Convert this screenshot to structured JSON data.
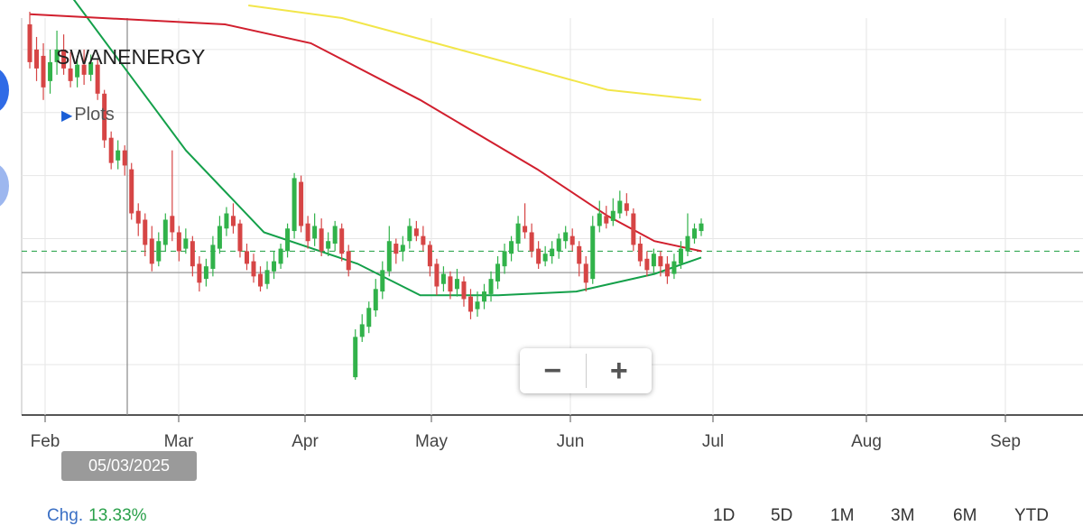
{
  "chart_data": {
    "type": "candlestick",
    "ticker": "SWANENERGY",
    "overlay_label": "Plots",
    "x_ticks": [
      "Feb",
      "Mar",
      "Apr",
      "May",
      "Jun",
      "Jul",
      "Aug",
      "Sep"
    ],
    "crosshair_date": "05/03/2025",
    "ylim": [
      310,
      625
    ],
    "gridlines_y": [
      600,
      550,
      500,
      450,
      400,
      350
    ],
    "current_price_line": 423,
    "dashed_line": 440,
    "candles": [
      [
        620,
        590,
        630,
        585
      ],
      [
        600,
        585,
        610,
        575
      ],
      [
        595,
        570,
        605,
        560
      ],
      [
        575,
        590,
        600,
        565
      ],
      [
        590,
        600,
        615,
        580
      ],
      [
        600,
        585,
        612,
        580
      ],
      [
        585,
        575,
        598,
        570
      ],
      [
        578,
        588,
        595,
        570
      ],
      [
        588,
        580,
        600,
        572
      ],
      [
        580,
        590,
        596,
        575
      ],
      [
        588,
        565,
        592,
        560
      ],
      [
        565,
        528,
        568,
        522
      ],
      [
        530,
        510,
        535,
        505
      ],
      [
        512,
        520,
        528,
        505
      ],
      [
        520,
        508,
        524,
        500
      ],
      [
        505,
        470,
        510,
        465
      ],
      [
        472,
        462,
        478,
        452
      ],
      [
        465,
        445,
        470,
        436
      ],
      [
        450,
        430,
        460,
        424
      ],
      [
        432,
        448,
        455,
        428
      ],
      [
        445,
        465,
        470,
        440
      ],
      [
        468,
        455,
        520,
        448
      ],
      [
        455,
        440,
        460,
        432
      ],
      [
        442,
        450,
        458,
        438
      ],
      [
        448,
        428,
        452,
        420
      ],
      [
        430,
        415,
        436,
        408
      ],
      [
        418,
        428,
        434,
        412
      ],
      [
        426,
        445,
        452,
        420
      ],
      [
        442,
        460,
        468,
        438
      ],
      [
        458,
        470,
        475,
        452
      ],
      [
        468,
        460,
        478,
        454
      ],
      [
        462,
        440,
        465,
        435
      ],
      [
        440,
        430,
        446,
        425
      ],
      [
        432,
        420,
        438,
        415
      ],
      [
        422,
        412,
        428,
        408
      ],
      [
        414,
        425,
        432,
        410
      ],
      [
        424,
        432,
        440,
        418
      ],
      [
        430,
        442,
        446,
        426
      ],
      [
        440,
        458,
        462,
        435
      ],
      [
        456,
        498,
        502,
        450
      ],
      [
        495,
        460,
        500,
        455
      ],
      [
        462,
        448,
        468,
        442
      ],
      [
        450,
        460,
        470,
        444
      ],
      [
        458,
        440,
        466,
        436
      ],
      [
        442,
        448,
        455,
        436
      ],
      [
        446,
        460,
        464,
        440
      ],
      [
        458,
        438,
        462,
        432
      ],
      [
        440,
        425,
        445,
        420
      ],
      [
        340,
        372,
        378,
        338
      ],
      [
        372,
        382,
        390,
        368
      ],
      [
        380,
        395,
        400,
        375
      ],
      [
        393,
        410,
        418,
        388
      ],
      [
        408,
        425,
        432,
        402
      ],
      [
        424,
        448,
        460,
        420
      ],
      [
        446,
        438,
        450,
        430
      ],
      [
        440,
        445,
        452,
        432
      ],
      [
        448,
        460,
        466,
        442
      ],
      [
        458,
        452,
        464,
        448
      ],
      [
        452,
        445,
        460,
        440
      ],
      [
        445,
        428,
        448,
        420
      ],
      [
        430,
        412,
        434,
        405
      ],
      [
        414,
        422,
        428,
        408
      ],
      [
        420,
        408,
        424,
        402
      ],
      [
        410,
        418,
        426,
        404
      ],
      [
        416,
        402,
        420,
        396
      ],
      [
        404,
        392,
        410,
        386
      ],
      [
        394,
        400,
        408,
        388
      ],
      [
        400,
        408,
        414,
        394
      ],
      [
        406,
        418,
        424,
        400
      ],
      [
        416,
        430,
        436,
        410
      ],
      [
        428,
        440,
        446,
        422
      ],
      [
        438,
        448,
        452,
        432
      ],
      [
        446,
        462,
        468,
        440
      ],
      [
        460,
        455,
        478,
        450
      ],
      [
        455,
        440,
        462,
        435
      ],
      [
        442,
        430,
        448,
        426
      ],
      [
        432,
        438,
        444,
        428
      ],
      [
        436,
        442,
        448,
        430
      ],
      [
        440,
        450,
        454,
        434
      ],
      [
        448,
        455,
        460,
        442
      ],
      [
        452,
        445,
        458,
        440
      ],
      [
        444,
        430,
        448,
        420
      ],
      [
        430,
        415,
        436,
        408
      ],
      [
        418,
        460,
        468,
        414
      ],
      [
        460,
        470,
        480,
        455
      ],
      [
        468,
        462,
        476,
        458
      ],
      [
        464,
        472,
        482,
        460
      ],
      [
        470,
        480,
        488,
        466
      ],
      [
        478,
        472,
        486,
        468
      ],
      [
        470,
        445,
        474,
        440
      ],
      [
        446,
        432,
        452,
        428
      ],
      [
        434,
        425,
        440,
        420
      ],
      [
        428,
        438,
        442,
        422
      ],
      [
        436,
        428,
        440,
        420
      ],
      [
        430,
        420,
        436,
        414
      ],
      [
        422,
        432,
        438,
        418
      ],
      [
        430,
        442,
        448,
        426
      ],
      [
        440,
        452,
        470,
        436
      ],
      [
        450,
        458,
        462,
        446
      ],
      [
        456,
        462,
        466,
        452
      ]
    ],
    "series": [
      {
        "name": "green-ma",
        "color": "#14a04a",
        "values": [
          [
            560,
            640
          ],
          [
            2000,
            520
          ],
          [
            3000,
            455
          ],
          [
            4200,
            430
          ],
          [
            5000,
            405
          ],
          [
            6000,
            405
          ],
          [
            7000,
            408
          ],
          [
            8000,
            422
          ],
          [
            8600,
            435
          ]
        ]
      },
      {
        "name": "red-ma",
        "color": "#d11f2e",
        "values": [
          [
            0,
            628
          ],
          [
            2500,
            620
          ],
          [
            3600,
            605
          ],
          [
            5000,
            560
          ],
          [
            6500,
            505
          ],
          [
            7400,
            468
          ],
          [
            8000,
            448
          ],
          [
            8600,
            440
          ]
        ]
      },
      {
        "name": "yellow-ma",
        "color": "#f2e64a",
        "values": [
          [
            2800,
            635
          ],
          [
            4000,
            625
          ],
          [
            5200,
            605
          ],
          [
            6400,
            585
          ],
          [
            7400,
            568
          ],
          [
            8600,
            560
          ]
        ]
      }
    ],
    "up_color": "#31b24a",
    "down_color": "#d64545"
  },
  "ui": {
    "zoom_out": "−",
    "zoom_in": "+",
    "chg_label": "Chg.",
    "chg_value": "13.33%",
    "ranges": [
      "1D",
      "5D",
      "1M",
      "3M",
      "6M",
      "YTD"
    ]
  }
}
